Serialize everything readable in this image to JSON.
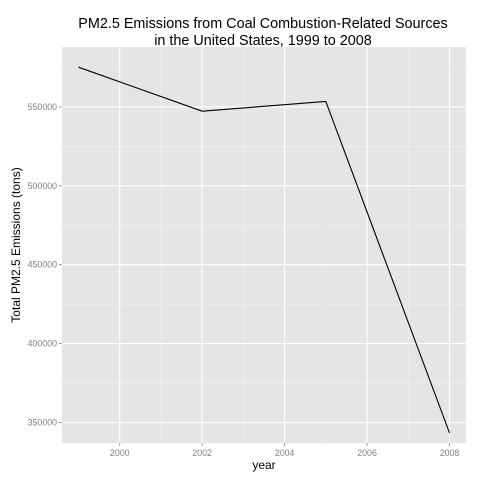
{
  "chart_data": {
    "type": "line",
    "title_lines": [
      "PM2.5 Emissions from Coal Combustion-Related Sources",
      "in the United States, 1999 to 2008"
    ],
    "xlabel": "year",
    "ylabel": "Total PM2.5 Emissions (tons)",
    "xlim": [
      1998.6,
      2008.4
    ],
    "ylim": [
      337000,
      588000
    ],
    "x_ticks": [
      2000,
      2002,
      2004,
      2006,
      2008
    ],
    "x_tick_labels": [
      "2000",
      "2002",
      "2004",
      "2006",
      "2008"
    ],
    "y_ticks": [
      350000,
      400000,
      450000,
      500000,
      550000
    ],
    "y_tick_labels": [
      "350000",
      "400000",
      "450000",
      "500000",
      "550000"
    ],
    "grid": true,
    "legend": "none",
    "series": [
      {
        "x": [
          1999,
          2002,
          2005,
          2008
        ],
        "values": [
          575200,
          547300,
          553500,
          343400
        ]
      }
    ],
    "colors": {
      "panel_background": "#E5E5E5",
      "grid_major": "#FFFFFF",
      "grid_minor": "#F2F2F2",
      "line": "#000000",
      "tick_label": "#7F7F7F"
    }
  }
}
